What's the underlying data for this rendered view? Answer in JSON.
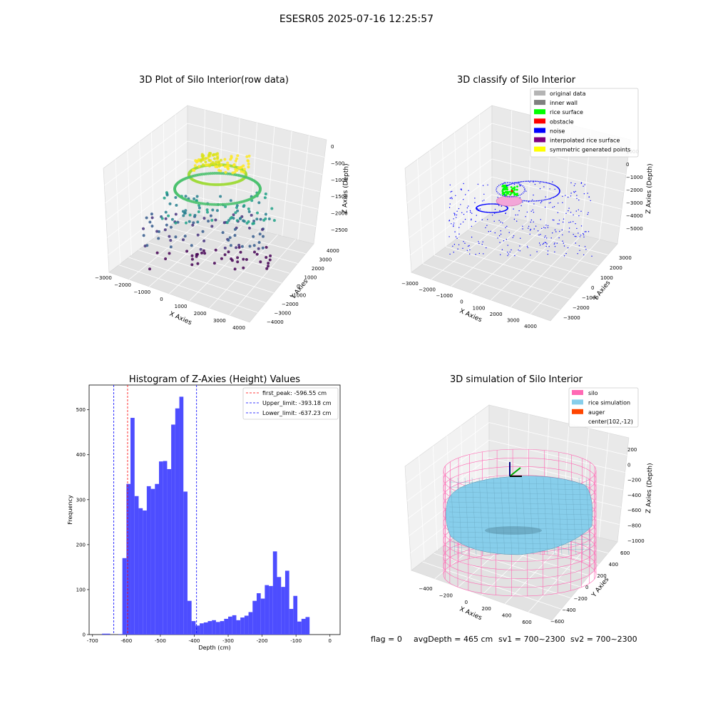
{
  "figure": {
    "suptitle": "ESESR05 2025-07-16 12:25:57",
    "footer": {
      "flag": "flag = 0",
      "avg": "avgDepth = 465 cm",
      "sv1": "sv1 = 700~2300",
      "sv2": "sv2 = 700~2300"
    }
  },
  "colors": {
    "blue_hist": "#4d4dff",
    "original": "#b4b4b4",
    "inner_wall": "#808080",
    "rice_surface": "#00ff00",
    "obstacle": "#ff0000",
    "noise": "#0000ff",
    "interp": "#800080",
    "symmetric": "#ffff00",
    "silo": "#ff69b4",
    "rice_sim": "#87ceeb",
    "auger": "#ff4500"
  },
  "chart_data": [
    {
      "type": "scatter",
      "title": "3D Plot of Silo Interior(row data)",
      "xlabel": "X Axies",
      "ylabel": "Y Axies",
      "zlabel": "Z Axies (Depth)",
      "x_ticks": [
        "−3000",
        "−2000",
        "−1000",
        "0",
        "1000",
        "2000",
        "3000",
        "4000"
      ],
      "y_ticks": [
        "−4000",
        "−3000",
        "−2000",
        "−1000",
        "0",
        "1000",
        "2000",
        "3000",
        "4000"
      ],
      "z_ticks": [
        "0",
        "−500",
        "−1000",
        "−1500",
        "−2000",
        "−2500"
      ],
      "xlim": [
        -3000,
        4000
      ],
      "ylim": [
        -4000,
        4000
      ],
      "zlim": [
        -2900,
        0
      ]
    },
    {
      "type": "scatter",
      "title": "3D classify of Silo Interior",
      "xlabel": "X Axies",
      "ylabel": "Y Axies",
      "zlabel": "Z Axies (Depth)",
      "x_ticks": [
        "−3000",
        "−2000",
        "−1000",
        "0",
        "1000",
        "2000",
        "3000",
        "4000"
      ],
      "y_ticks": [
        "−3000",
        "−2000",
        "−1000",
        "0",
        "1000",
        "2000",
        "3000"
      ],
      "z_ticks": [
        "1000",
        "0",
        "−1000",
        "−2000",
        "−3000",
        "−4000",
        "−5000"
      ],
      "legend": [
        {
          "label": "original data",
          "color": "#b4b4b4"
        },
        {
          "label": "inner wall",
          "color": "#808080"
        },
        {
          "label": "rice surface",
          "color": "#00ff00"
        },
        {
          "label": "obstacle",
          "color": "#ff0000"
        },
        {
          "label": "noise",
          "color": "#0000ff"
        },
        {
          "label": "interpolated rice surface",
          "color": "#800080"
        },
        {
          "label": "symmetric generated points",
          "color": "#ffff00"
        }
      ]
    },
    {
      "type": "bar",
      "title": "Histogram of Z-Axies (Height) Values",
      "xlabel": "Depth (cm)",
      "ylabel": "Frequency",
      "xlim": [
        -710,
        30
      ],
      "ylim": [
        0,
        555
      ],
      "x_ticks": [
        -700,
        -600,
        -500,
        -400,
        -300,
        -200,
        -100,
        0
      ],
      "y_ticks": [
        0,
        100,
        200,
        300,
        400,
        500
      ],
      "bin_width": 12,
      "bins": [
        {
          "x": -672,
          "v": 2
        },
        {
          "x": -660,
          "v": 2
        },
        {
          "x": -624,
          "v": 1
        },
        {
          "x": -612,
          "v": 170
        },
        {
          "x": -600,
          "v": 335
        },
        {
          "x": -588,
          "v": 482
        },
        {
          "x": -576,
          "v": 308
        },
        {
          "x": -564,
          "v": 281
        },
        {
          "x": -552,
          "v": 276
        },
        {
          "x": -540,
          "v": 330
        },
        {
          "x": -528,
          "v": 324
        },
        {
          "x": -516,
          "v": 335
        },
        {
          "x": -504,
          "v": 385
        },
        {
          "x": -492,
          "v": 386
        },
        {
          "x": -480,
          "v": 368
        },
        {
          "x": -468,
          "v": 467
        },
        {
          "x": -456,
          "v": 503
        },
        {
          "x": -444,
          "v": 529
        },
        {
          "x": -432,
          "v": 318
        },
        {
          "x": -420,
          "v": 75
        },
        {
          "x": -408,
          "v": 30
        },
        {
          "x": -396,
          "v": 20
        },
        {
          "x": -384,
          "v": 25
        },
        {
          "x": -372,
          "v": 27
        },
        {
          "x": -360,
          "v": 30
        },
        {
          "x": -348,
          "v": 32
        },
        {
          "x": -336,
          "v": 28
        },
        {
          "x": -324,
          "v": 30
        },
        {
          "x": -312,
          "v": 35
        },
        {
          "x": -300,
          "v": 40
        },
        {
          "x": -288,
          "v": 43
        },
        {
          "x": -276,
          "v": 32
        },
        {
          "x": -264,
          "v": 38
        },
        {
          "x": -252,
          "v": 42
        },
        {
          "x": -240,
          "v": 50
        },
        {
          "x": -228,
          "v": 75
        },
        {
          "x": -216,
          "v": 92
        },
        {
          "x": -204,
          "v": 80
        },
        {
          "x": -192,
          "v": 110
        },
        {
          "x": -180,
          "v": 108
        },
        {
          "x": -168,
          "v": 185
        },
        {
          "x": -156,
          "v": 128
        },
        {
          "x": -144,
          "v": 106
        },
        {
          "x": -132,
          "v": 142
        },
        {
          "x": -120,
          "v": 57
        },
        {
          "x": -108,
          "v": 86
        },
        {
          "x": -96,
          "v": 29
        },
        {
          "x": -84,
          "v": 35
        },
        {
          "x": -72,
          "v": 39
        }
      ],
      "vlines": [
        {
          "label": "first_peak: -596.55 cm",
          "x": -596.55,
          "color": "#ff0000"
        },
        {
          "label": "Upper_limit: -393.18 cm",
          "x": -393.18,
          "color": "#0000ff"
        },
        {
          "label": "Lower_limit: -637.23 cm",
          "x": -637.23,
          "color": "#0000ff"
        }
      ]
    },
    {
      "type": "scatter",
      "title": "3D simulation of Silo Interior",
      "xlabel": "X Axies",
      "ylabel": "Y Axies",
      "zlabel": "Z Axies (Depth)",
      "x_ticks": [
        "−400",
        "−200",
        "0",
        "200",
        "400",
        "600"
      ],
      "y_ticks": [
        "−600",
        "−400",
        "−200",
        "0",
        "200",
        "400",
        "600"
      ],
      "z_ticks": [
        "200",
        "0",
        "−200",
        "−400",
        "−600",
        "−800",
        "−1000"
      ],
      "legend": [
        {
          "label": "silo",
          "color": "#ff69b4"
        },
        {
          "label": "rice simulation",
          "color": "#87ceeb"
        },
        {
          "label": "auger",
          "color": "#ff4500"
        },
        {
          "label": "center(102,-12)",
          "color": ""
        }
      ]
    }
  ]
}
